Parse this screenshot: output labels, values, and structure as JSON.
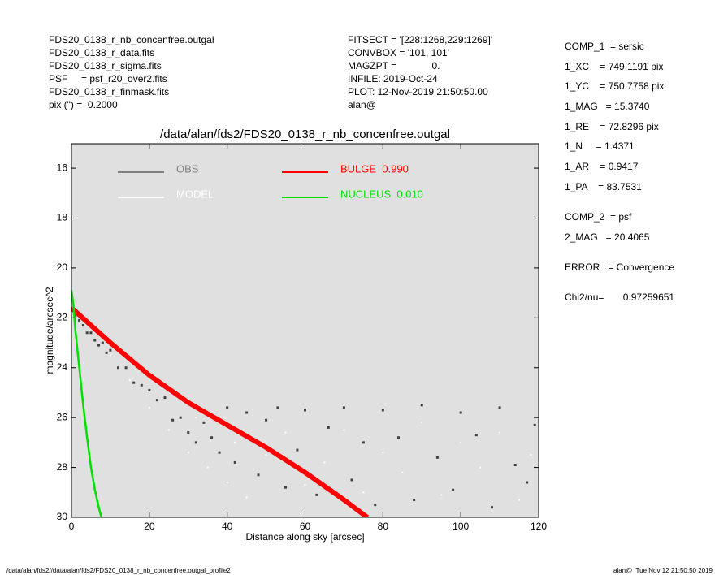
{
  "header": {
    "left": [
      "FDS20_0138_r_nb_concenfree.outgal",
      "FDS20_0138_r_data.fits",
      "FDS20_0138_r_sigma.fits",
      "PSF     = psf_r20_over2.fits",
      "FDS20_0138_r_finmask.fits",
      "pix (\") =  0.2000"
    ],
    "middle": [
      "FITSECT = '[228:1268,229:1269]'",
      "CONVBOX = '101, 101'",
      "MAGZPT =             0.",
      "INFILE: 2019-Oct-24",
      "PLOT: 12-Nov-2019 21:50:50.00",
      "alan@"
    ],
    "right": [
      "COMP_1  = sersic",
      "1_XC    = 749.1191 pix",
      "1_YC    = 750.7758 pix",
      "1_MAG   = 15.3740",
      "1_RE    = 72.8296 pix",
      "1_N     = 1.4371",
      "1_AR    = 0.9417",
      "1_PA    = 83.7531",
      "COMP_2  = psf",
      "2_MAG   = 20.4065",
      "ERROR   = Convergence",
      "Chi2/nu=       0.97259651"
    ]
  },
  "footer": {
    "left": "/data/alan/fds2//data/alan/fds2/FDS20_0138_r_nb_concenfree.outgal_profile2",
    "right": "alan@  Tue Nov 12 21:50:50 2019"
  },
  "chart_data": {
    "type": "scatter",
    "title": "/data/alan/fds2/FDS20_0138_r_nb_concenfree.outgal",
    "xlabel": "Distance along sky [arcsec]",
    "ylabel": "magnitude/arcsec^2",
    "xlim": [
      0,
      120
    ],
    "xticks": [
      0,
      20,
      40,
      60,
      80,
      100,
      120
    ],
    "ylim": [
      30,
      15.02
    ],
    "yticks": [
      16,
      18,
      20,
      22,
      24,
      26,
      28,
      30
    ],
    "y_inverted": true,
    "background": "#e0e0e0",
    "series": [
      {
        "name": "OBS",
        "color": "#404040",
        "legend_color": "#808080",
        "kind": "scatter",
        "x": [
          1,
          2,
          3,
          4,
          5,
          6,
          7,
          8,
          9,
          10,
          12,
          14,
          16,
          18,
          20,
          22,
          24,
          26,
          28,
          30,
          32,
          34,
          36,
          38,
          40,
          42,
          45,
          48,
          50,
          53,
          55,
          58,
          60,
          63,
          66,
          70,
          72,
          75,
          78,
          80,
          84,
          88,
          90,
          94,
          98,
          100,
          104,
          108,
          110,
          114,
          117,
          119
        ],
        "values": [
          21.9,
          22.1,
          22.3,
          22.6,
          22.6,
          22.9,
          23.1,
          23.0,
          23.4,
          23.3,
          24.0,
          24.0,
          24.6,
          24.7,
          24.9,
          25.3,
          25.2,
          26.1,
          26.0,
          26.6,
          27.0,
          26.2,
          26.8,
          27.4,
          25.6,
          27.8,
          25.8,
          28.3,
          26.1,
          25.6,
          28.8,
          27.3,
          25.7,
          29.1,
          26.4,
          25.6,
          28.5,
          27.0,
          29.5,
          25.7,
          26.8,
          29.3,
          25.5,
          27.6,
          28.9,
          25.8,
          26.7,
          29.6,
          25.6,
          27.9,
          28.6,
          26.3
        ]
      },
      {
        "name": "MODEL",
        "color": "#ffffff",
        "kind": "scatter",
        "x": [
          10,
          15,
          20,
          25,
          30,
          32,
          35,
          40,
          42,
          45,
          50,
          55,
          60,
          65,
          70,
          75,
          80,
          85,
          90,
          95,
          100,
          105,
          110,
          115,
          118
        ],
        "values": [
          23.5,
          24.5,
          25.6,
          26.5,
          27.4,
          26.0,
          28.0,
          28.6,
          27.0,
          29.2,
          27.5,
          26.6,
          28.7,
          27.8,
          26.5,
          29.0,
          27.4,
          28.2,
          26.2,
          29.1,
          27.0,
          28.0,
          26.6,
          29.3,
          27.5
        ]
      },
      {
        "name": "BULGE  0.990",
        "color": "#ff0000",
        "kind": "line",
        "width": 6,
        "x": [
          0,
          5,
          10,
          20,
          30,
          40,
          50,
          60,
          70,
          76
        ],
        "values": [
          21.6,
          22.3,
          23.0,
          24.3,
          25.4,
          26.3,
          27.2,
          28.2,
          29.3,
          30
        ]
      },
      {
        "name": "NUCLEUS  0.010",
        "color": "#00e000",
        "kind": "line",
        "width": 2.5,
        "x": [
          0,
          0.5,
          1,
          2,
          3,
          4,
          5,
          6,
          7,
          7.7
        ],
        "values": [
          20.9,
          21.5,
          22.5,
          24.0,
          25.5,
          26.8,
          28.0,
          28.9,
          29.6,
          30
        ]
      }
    ]
  }
}
